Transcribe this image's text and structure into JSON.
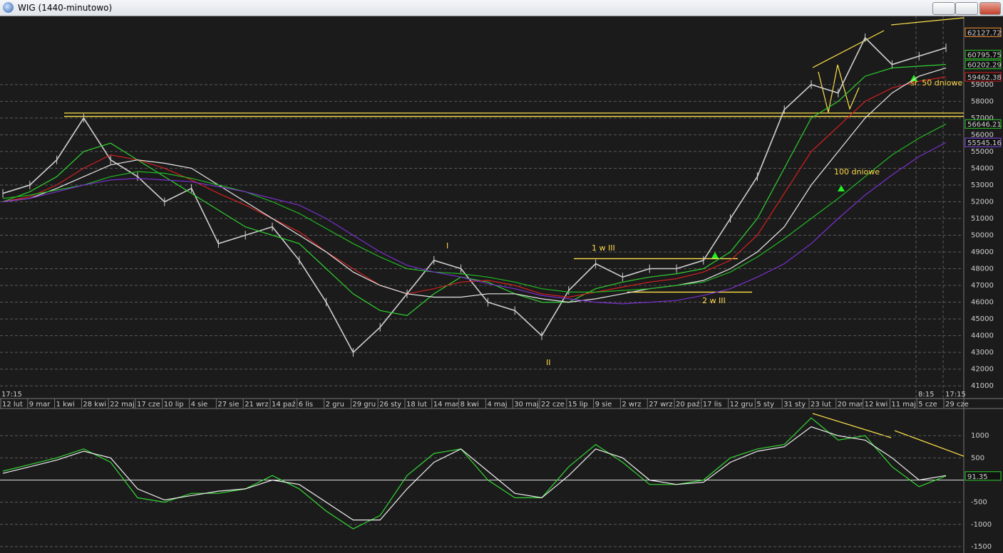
{
  "window": {
    "title": "WIG (1440-minutowo)"
  },
  "chart_data": [
    {
      "type": "line",
      "categories": [
        "12 lut",
        "9 mar",
        "1 kwi",
        "28 kwi",
        "22 maj",
        "17 cze",
        "10 lip",
        "4 sie",
        "27 sie",
        "21 wrz",
        "14 paź",
        "6 lis",
        "2 gru",
        "29 gru",
        "26 sty",
        "18 lut",
        "14 mar",
        "8 kwi",
        "4 maj",
        "30 maj",
        "22 cze",
        "15 lip",
        "9 sie",
        "2 wrz",
        "27 wrz",
        "20 paź",
        "17 lis",
        "12 gru",
        "5 sty",
        "31 sty",
        "23 lut",
        "20 mar",
        "12 kwi",
        "11 maj",
        "5 cze",
        "29 cze"
      ],
      "time_labels": [
        "17:15",
        "8:15",
        "17:15"
      ],
      "ylim": [
        40750,
        63120
      ],
      "yticks": [
        41000,
        42000,
        43000,
        44000,
        45000,
        46000,
        47000,
        48000,
        49000,
        50000,
        51000,
        52000,
        53000,
        54000,
        55000,
        56000,
        57000,
        58000,
        59000
      ],
      "grid": true,
      "series": [
        {
          "color": "#d0d0d0",
          "values": [
            52500,
            53000,
            54500,
            57000,
            54500,
            53500,
            52000,
            52800,
            49500,
            50000,
            50500,
            48500,
            46000,
            43000,
            44500,
            46500,
            48500,
            48000,
            46000,
            45500,
            44000,
            46700,
            48300,
            47500,
            48000,
            48000,
            48500,
            51000,
            53500,
            57500,
            59000,
            58500,
            61800,
            60200,
            60700,
            61200
          ]
        },
        {
          "color": "#2fd12f",
          "values": [
            52000,
            52600,
            53500,
            55000,
            55500,
            54500,
            53500,
            52500,
            51500,
            50500,
            50000,
            49500,
            48000,
            46500,
            45500,
            45200,
            46500,
            47500,
            47200,
            46500,
            46000,
            46000,
            46800,
            47200,
            47500,
            47700,
            48000,
            49000,
            51000,
            54000,
            57000,
            58000,
            59500,
            60000,
            60100,
            60202.29
          ]
        },
        {
          "color": "#d42020",
          "values": [
            52000,
            52300,
            53000,
            54000,
            54800,
            54500,
            54000,
            53300,
            52500,
            51800,
            51000,
            50200,
            49000,
            48000,
            47000,
            46500,
            46800,
            47200,
            47300,
            47000,
            46500,
            46300,
            46600,
            46900,
            47200,
            47400,
            47800,
            48500,
            50000,
            52500,
            55000,
            56500,
            58000,
            58800,
            59200,
            59462.38
          ]
        },
        {
          "color": "#e8e8e8",
          "values": [
            52000,
            52200,
            52800,
            53500,
            54200,
            54500,
            54300,
            54000,
            53000,
            52000,
            51000,
            50000,
            49000,
            47800,
            47000,
            46500,
            46300,
            46300,
            46500,
            46500,
            46200,
            46000,
            46200,
            46500,
            46800,
            47000,
            47300,
            48000,
            49000,
            50500,
            53000,
            55000,
            57000,
            58500,
            59500,
            60000
          ]
        },
        {
          "color": "#22b822",
          "values": [
            52200,
            52400,
            52700,
            53000,
            53500,
            53800,
            53700,
            53400,
            53000,
            52600,
            52000,
            51300,
            50400,
            49500,
            48700,
            48000,
            47800,
            47700,
            47500,
            47200,
            46800,
            46600,
            46600,
            46700,
            46800,
            47000,
            47200,
            47800,
            48700,
            49800,
            51000,
            52200,
            53500,
            54800,
            55800,
            56646.21
          ]
        },
        {
          "color": "#7b2fd0",
          "values": [
            52000,
            52200,
            52600,
            53000,
            53300,
            53400,
            53300,
            53200,
            52900,
            52600,
            52200,
            51800,
            51000,
            50000,
            49000,
            48200,
            47800,
            47500,
            47100,
            46800,
            46400,
            46200,
            46000,
            45900,
            46000,
            46100,
            46400,
            46800,
            47500,
            48300,
            49500,
            51000,
            52400,
            53600,
            54700,
            55545.16
          ]
        }
      ],
      "last_values": [
        {
          "value": 62127.72,
          "color": "#ff9a3c"
        },
        {
          "value": 60795.75,
          "color": "#2fd12f"
        },
        {
          "value": 60202.29,
          "color": "#2fd12f"
        },
        {
          "value": 59462.38,
          "color": "#e02020"
        },
        {
          "value": 56646.21,
          "color": "#2fd12f"
        },
        {
          "value": 55545.16,
          "color": "#8a4ff0"
        }
      ],
      "hlines": [
        {
          "value": 57300,
          "color": "#ffe24a"
        },
        {
          "value": 57100,
          "color": "#ffe24a"
        },
        {
          "value": 48600,
          "color": "#ffe24a"
        },
        {
          "value": 46600,
          "color": "#ffe24a"
        }
      ],
      "annotations": [
        "I",
        "II",
        "1 w III",
        "2 w III",
        "100 dniowe",
        "śr. 50 dniowe"
      ]
    },
    {
      "type": "line",
      "ylim": [
        -1613,
        1548
      ],
      "yticks": [
        1000,
        500,
        -500,
        -1000,
        -1500
      ],
      "zero": 0,
      "series": [
        {
          "color": "#33d633",
          "values": [
            200,
            350,
            500,
            700,
            400,
            -400,
            -500,
            -300,
            -300,
            -200,
            100,
            -200,
            -700,
            -1100,
            -800,
            100,
            600,
            700,
            0,
            -400,
            -400,
            300,
            800,
            400,
            -100,
            -100,
            0,
            500,
            700,
            800,
            1400,
            900,
            1000,
            300,
            -150,
            91.35
          ]
        },
        {
          "color": "#f0f0f0",
          "values": [
            150,
            300,
            450,
            650,
            500,
            -200,
            -450,
            -350,
            -250,
            -200,
            0,
            -100,
            -500,
            -900,
            -900,
            -200,
            400,
            700,
            200,
            -300,
            -400,
            100,
            700,
            500,
            0,
            -100,
            -50,
            400,
            650,
            750,
            1200,
            1000,
            900,
            500,
            0,
            100
          ]
        }
      ],
      "last_values": [
        {
          "value": 91.35,
          "color": "#2fd12f"
        }
      ]
    }
  ]
}
